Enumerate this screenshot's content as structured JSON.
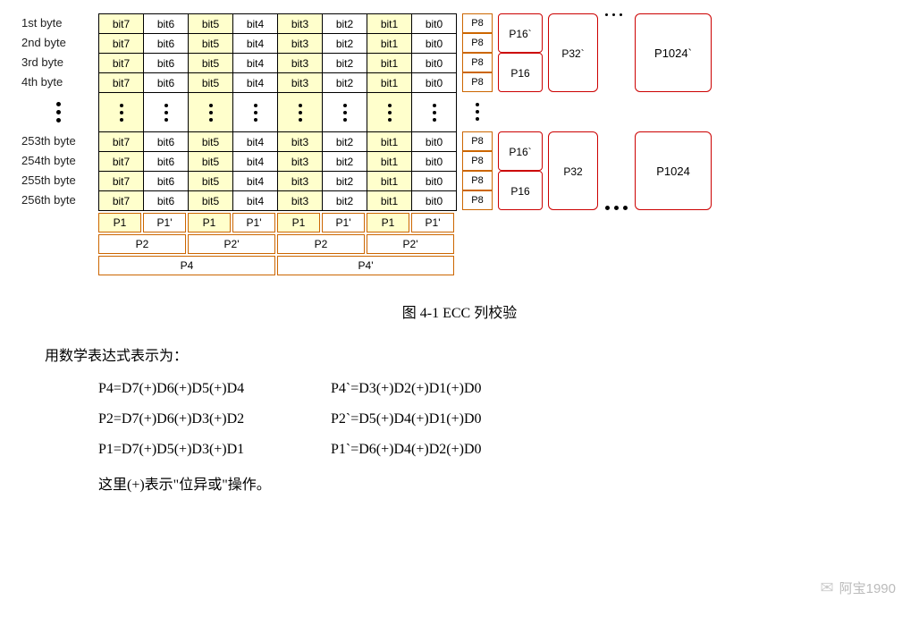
{
  "diagram": {
    "row_label_set": [
      "1st byte",
      "2nd byte",
      "3rd byte",
      "4th byte",
      "253th byte",
      "254th byte",
      "255th byte",
      "256th byte"
    ],
    "bit_headers": [
      "bit7",
      "bit6",
      "bit5",
      "bit4",
      "bit3",
      "bit2",
      "bit1",
      "bit0"
    ],
    "highlight_cols": [
      0,
      2,
      4,
      6
    ],
    "highlight_color": "#ffffcc",
    "cell_border_color": "#000000",
    "p8_label": "P8",
    "p8_border_color": "#cc6600",
    "p16_top": "P16`",
    "p16_bot": "P16",
    "p32_top": "P32`",
    "p32_bot": "P32",
    "p1024_top": "P1024`",
    "p1024_bot": "P1024",
    "red_border_color": "#cc0000",
    "p1_row": [
      "P1",
      "P1'",
      "P1",
      "P1'",
      "P1",
      "P1'",
      "P1",
      "P1'"
    ],
    "p2_row": [
      "P2",
      "P2'",
      "P2",
      "P2'"
    ],
    "p4_row": [
      "P4",
      "P4'"
    ]
  },
  "caption": "图 4-1 ECC 列校验",
  "math_intro": "用数学表达式表示为：",
  "equations": [
    {
      "left": "P4=D7(+)D6(+)D5(+)D4",
      "right": "P4`=D3(+)D2(+)D1(+)D0"
    },
    {
      "left": "P2=D7(+)D6(+)D3(+)D2",
      "right": "P2`=D5(+)D4(+)D1(+)D0"
    },
    {
      "left": "P1=D7(+)D5(+)D3(+)D1",
      "right": "P1`=D6(+)D4(+)D2(+)D0"
    }
  ],
  "note": "这里(+)表示\"位异或\"操作。",
  "watermark": {
    "text": "阿宝1990",
    "icon": "✉"
  },
  "colors": {
    "bg": "#ffffff",
    "text": "#000000",
    "wm": "#bbbbbb"
  }
}
